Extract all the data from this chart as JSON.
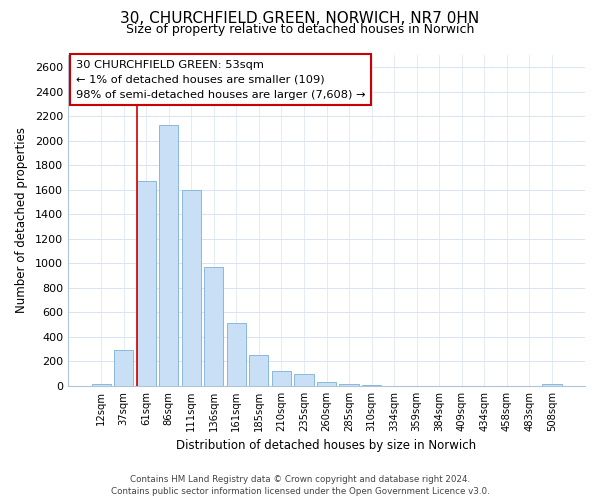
{
  "title": "30, CHURCHFIELD GREEN, NORWICH, NR7 0HN",
  "subtitle": "Size of property relative to detached houses in Norwich",
  "xlabel": "Distribution of detached houses by size in Norwich",
  "ylabel": "Number of detached properties",
  "bar_color": "#c8dff5",
  "bar_edge_color": "#7ab0d8",
  "categories": [
    "12sqm",
    "37sqm",
    "61sqm",
    "86sqm",
    "111sqm",
    "136sqm",
    "161sqm",
    "185sqm",
    "210sqm",
    "235sqm",
    "260sqm",
    "285sqm",
    "310sqm",
    "334sqm",
    "359sqm",
    "384sqm",
    "409sqm",
    "434sqm",
    "458sqm",
    "483sqm",
    "508sqm"
  ],
  "values": [
    15,
    290,
    1670,
    2130,
    1600,
    970,
    510,
    255,
    125,
    100,
    30,
    12,
    4,
    3,
    3,
    3,
    3,
    3,
    3,
    3,
    18
  ],
  "ylim": [
    0,
    2700
  ],
  "yticks": [
    0,
    200,
    400,
    600,
    800,
    1000,
    1200,
    1400,
    1600,
    1800,
    2000,
    2200,
    2400,
    2600
  ],
  "annotation_line1": "30 CHURCHFIELD GREEN: 53sqm",
  "annotation_line2": "← 1% of detached houses are smaller (109)",
  "annotation_line3": "98% of semi-detached houses are larger (7,608) →",
  "red_line_bar_index": 2,
  "box_facecolor": "#ffffff",
  "box_edgecolor": "#cc0000",
  "footer_line1": "Contains HM Land Registry data © Crown copyright and database right 2024.",
  "footer_line2": "Contains public sector information licensed under the Open Government Licence v3.0.",
  "background_color": "#ffffff",
  "grid_color": "#d8e4f0",
  "title_fontsize": 11,
  "subtitle_fontsize": 9
}
